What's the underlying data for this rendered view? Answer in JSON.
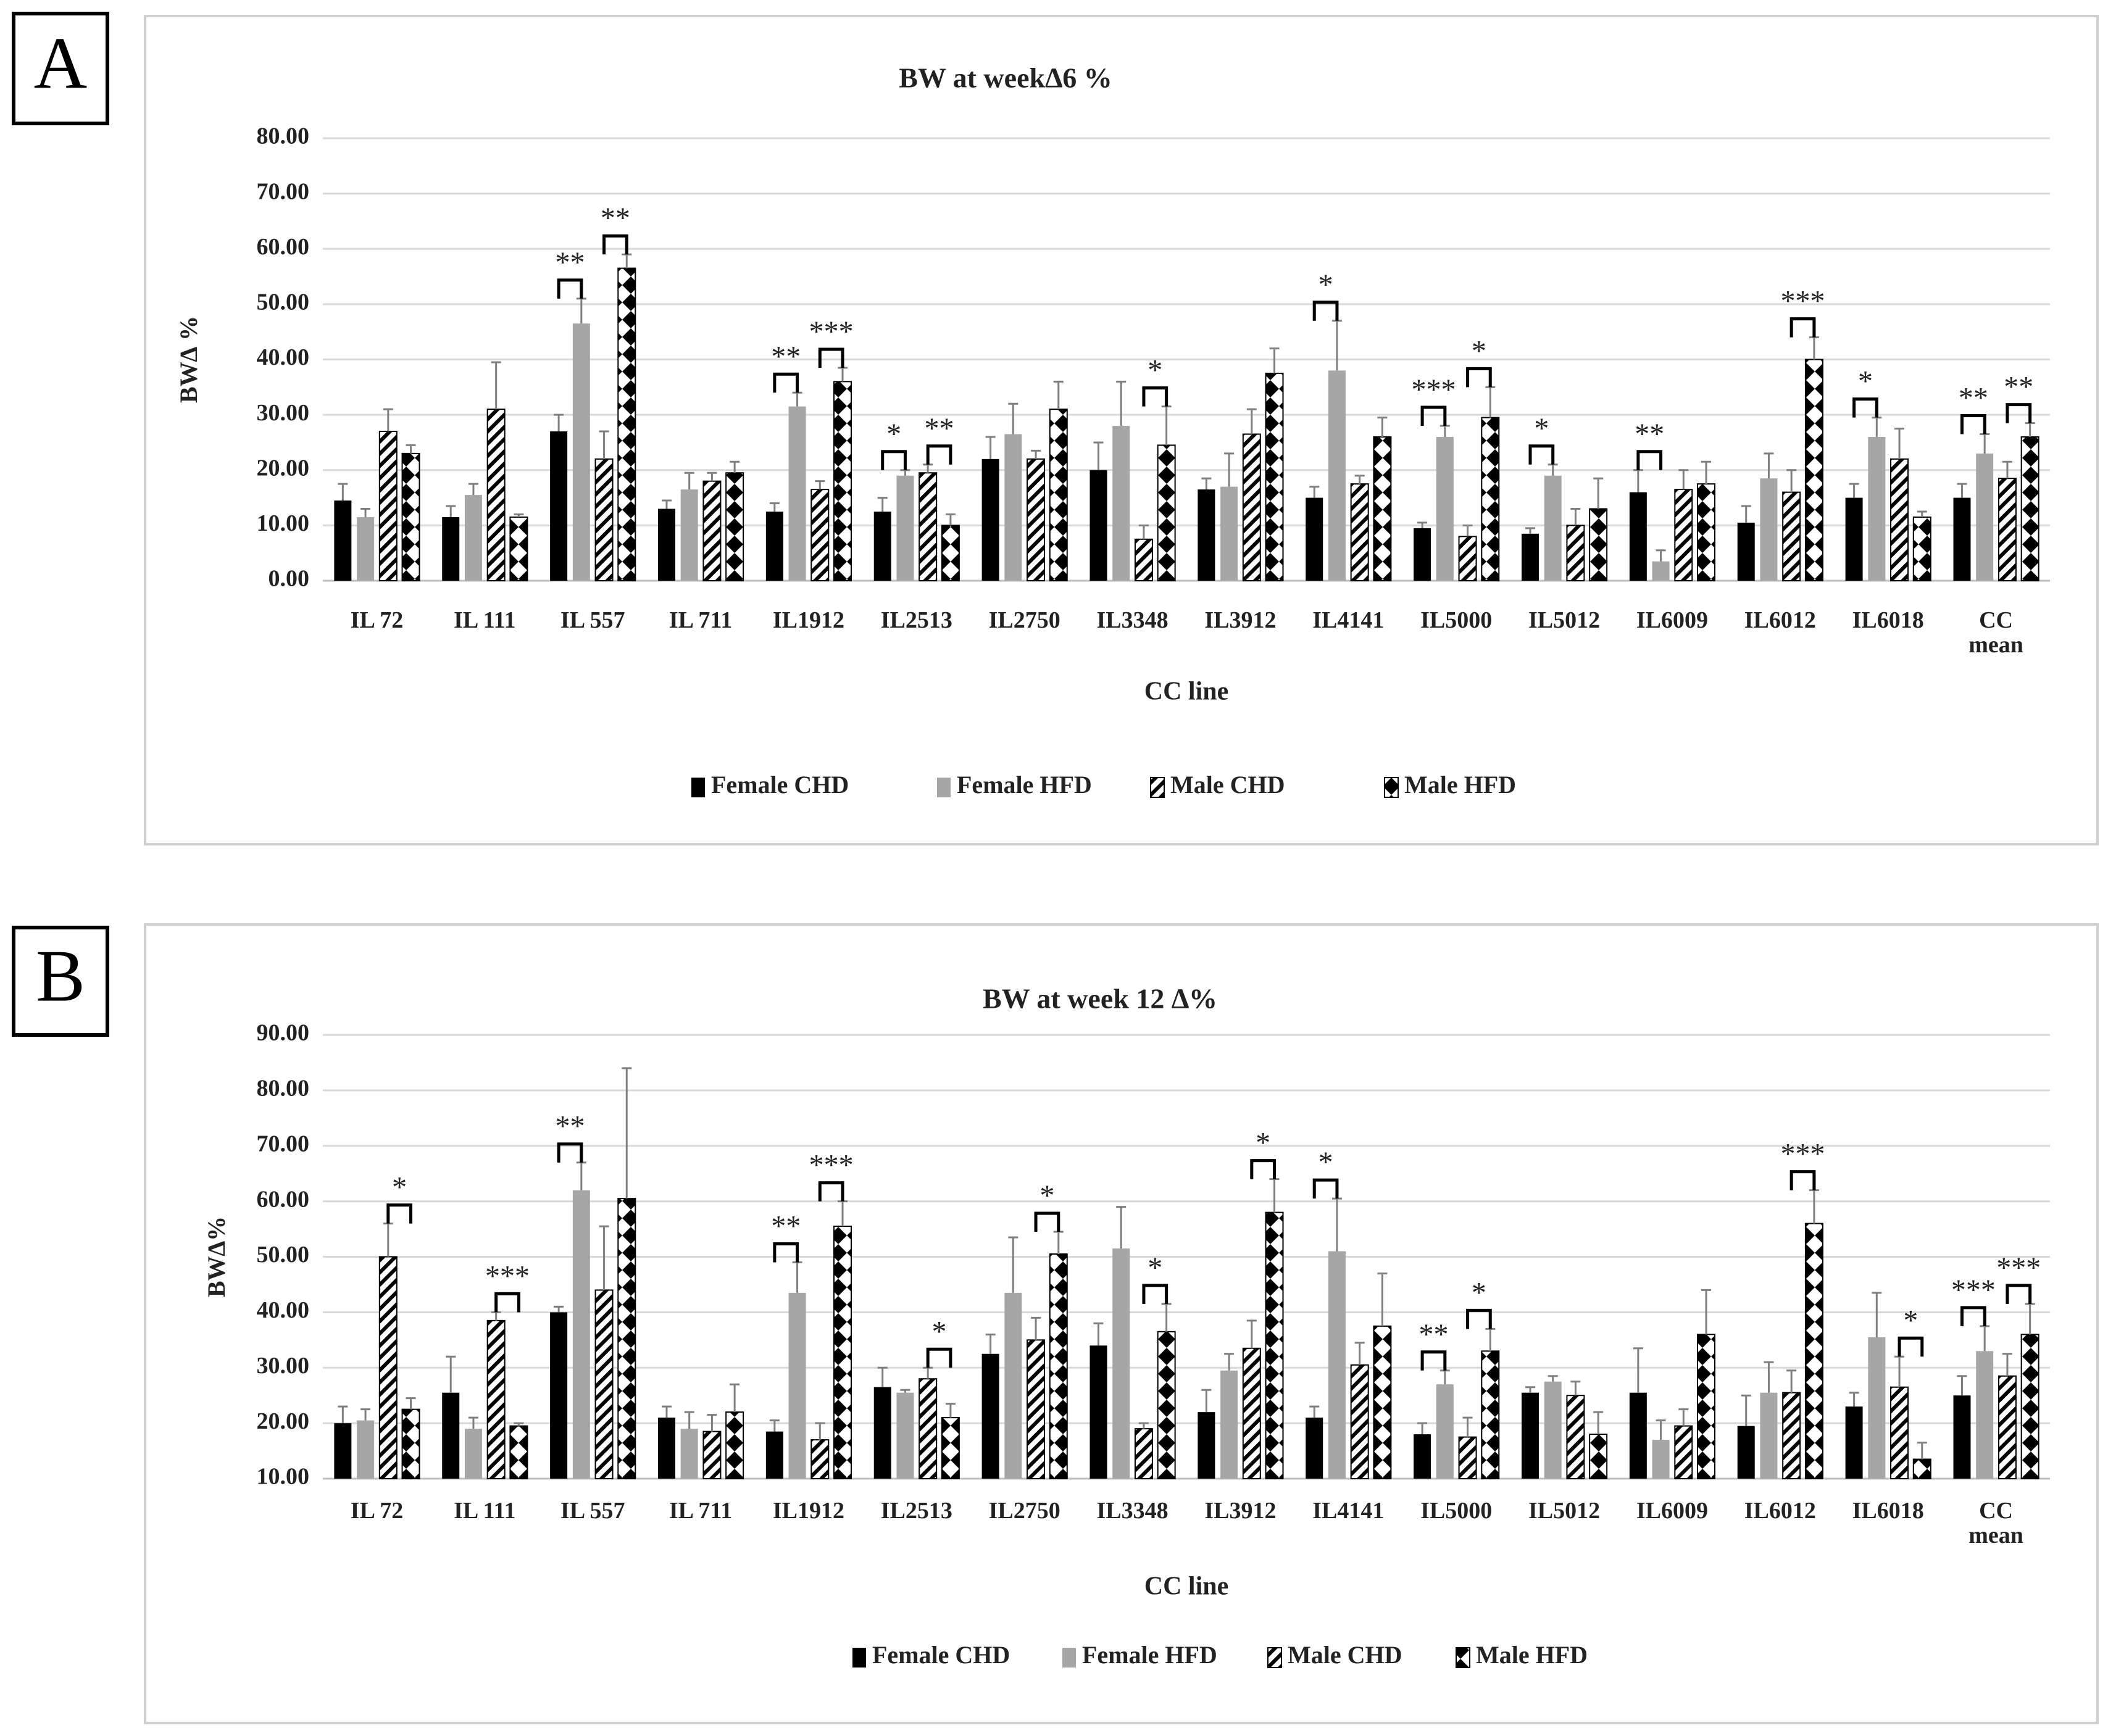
{
  "chart_data": [
    {
      "type": "bar",
      "panel": "A",
      "title": "BW at week∆6  %",
      "y_label": "BW∆ %",
      "x_label": "CC line",
      "categories": [
        "IL 72",
        "IL 111",
        "IL 557",
        "IL 711",
        "IL1912",
        "IL2513",
        "IL2750",
        "IL3348",
        "IL3912",
        "IL4141",
        "IL5000",
        "IL5012",
        "IL6009",
        "IL6012",
        "IL6018",
        "CC\nmean"
      ],
      "series": [
        {
          "name": "Female CHD",
          "color": "#000000",
          "pattern": "solid",
          "values": [
            14.5,
            11.5,
            27,
            13,
            12.5,
            12.5,
            22,
            20,
            16.5,
            15,
            9.5,
            8.5,
            16,
            10.5,
            15,
            15
          ],
          "errors": [
            3,
            2,
            3,
            1.5,
            1.5,
            2.5,
            4,
            5,
            2,
            2,
            1,
            1,
            4,
            3,
            2.5,
            2.5
          ]
        },
        {
          "name": "Female HFD",
          "color": "#a6a6a6",
          "pattern": "solid",
          "values": [
            11.5,
            15.5,
            46.5,
            16.5,
            31.5,
            19,
            26.5,
            28,
            17,
            38,
            26,
            19,
            3.5,
            18.5,
            26,
            23
          ],
          "errors": [
            1.5,
            2,
            4.5,
            3,
            2.5,
            1,
            5.5,
            8,
            6,
            9,
            2,
            2,
            2,
            4.5,
            3.5,
            3.5
          ]
        },
        {
          "name": "Male CHD",
          "color": "#000000",
          "pattern": "hatch",
          "values": [
            27,
            31,
            22,
            18,
            16.5,
            19.5,
            22,
            7.5,
            26.5,
            17.5,
            8,
            10,
            16.5,
            16,
            22,
            18.5
          ],
          "errors": [
            4,
            8.5,
            5,
            1.5,
            1.5,
            1.5,
            1.5,
            2.5,
            4.5,
            1.5,
            2,
            3,
            3.5,
            4,
            5.5,
            3
          ]
        },
        {
          "name": "Male HFD",
          "color": "#000000",
          "pattern": "diamond",
          "values": [
            23,
            11.5,
            56.5,
            19.5,
            36,
            10,
            31,
            24.5,
            37.5,
            26,
            29.5,
            13,
            17.5,
            40,
            11.5,
            26
          ],
          "errors": [
            1.5,
            0.5,
            2.5,
            2,
            2.5,
            2,
            5,
            7,
            4.5,
            3.5,
            5.5,
            5.5,
            4,
            4,
            1,
            2.5
          ]
        }
      ],
      "ylim": [
        0,
        80
      ],
      "yticks": [
        {
          "value": 0,
          "label": "0.00"
        },
        {
          "value": 10,
          "label": "10.00"
        },
        {
          "value": 20,
          "label": "20.00"
        },
        {
          "value": 30,
          "label": "30.00"
        },
        {
          "value": 40,
          "label": "40.00"
        },
        {
          "value": 50,
          "label": "50.00"
        },
        {
          "value": 60,
          "label": "60.00"
        },
        {
          "value": 70,
          "label": "70.00"
        },
        {
          "value": 80,
          "label": "80.00"
        }
      ],
      "grid": true,
      "legend": "bottom",
      "annotations": [
        {
          "category": "IL 557",
          "between": [
            "Female CHD",
            "Female HFD"
          ],
          "text": "**"
        },
        {
          "category": "IL 557",
          "between": [
            "Male CHD",
            "Male HFD"
          ],
          "text": "**"
        },
        {
          "category": "IL1912",
          "between": [
            "Female CHD",
            "Female HFD"
          ],
          "text": "**"
        },
        {
          "category": "IL1912",
          "between": [
            "Male CHD",
            "Male HFD"
          ],
          "text": "***"
        },
        {
          "category": "IL2513",
          "between": [
            "Female CHD",
            "Female HFD"
          ],
          "text": "*"
        },
        {
          "category": "IL2513",
          "between": [
            "Male CHD",
            "Male HFD"
          ],
          "text": "**"
        },
        {
          "category": "IL3348",
          "between": [
            "Male CHD",
            "Male HFD"
          ],
          "text": "*"
        },
        {
          "category": "IL4141",
          "between": [
            "Female CHD",
            "Female HFD"
          ],
          "text": "*"
        },
        {
          "category": "IL5000",
          "between": [
            "Female CHD",
            "Female HFD"
          ],
          "text": "***"
        },
        {
          "category": "IL5000",
          "between": [
            "Male CHD",
            "Male HFD"
          ],
          "text": "*"
        },
        {
          "category": "IL5012",
          "between": [
            "Female CHD",
            "Female HFD"
          ],
          "text": "*"
        },
        {
          "category": "IL6009",
          "between": [
            "Female CHD",
            "Female HFD"
          ],
          "text": "**"
        },
        {
          "category": "IL6012",
          "between": [
            "Male CHD",
            "Male HFD"
          ],
          "text": "***"
        },
        {
          "category": "IL6018",
          "between": [
            "Female CHD",
            "Female HFD"
          ],
          "text": "*"
        },
        {
          "category": "CC\nmean",
          "between": [
            "Female CHD",
            "Female HFD"
          ],
          "text": "**"
        },
        {
          "category": "CC\nmean",
          "between": [
            "Male CHD",
            "Male HFD"
          ],
          "text": "**"
        }
      ]
    },
    {
      "type": "bar",
      "panel": "B",
      "title": "BW at week 12 ∆%",
      "y_label": "BW∆%",
      "x_label": "CC line",
      "categories": [
        "IL 72",
        "IL 111",
        "IL 557",
        "IL 711",
        "IL1912",
        "IL2513",
        "IL2750",
        "IL3348",
        "IL3912",
        "IL4141",
        "IL5000",
        "IL5012",
        "IL6009",
        "IL6012",
        "IL6018",
        "CC\nmean"
      ],
      "series": [
        {
          "name": "Female CHD",
          "color": "#000000",
          "pattern": "solid",
          "values": [
            20,
            25.5,
            40,
            21,
            18.5,
            26.5,
            32.5,
            34,
            22,
            21,
            18,
            25.5,
            25.5,
            19.5,
            23,
            25
          ],
          "errors": [
            3,
            6.5,
            1,
            2,
            2,
            3.5,
            3.5,
            4,
            4,
            2,
            2,
            1,
            8,
            5.5,
            2.5,
            3.5
          ]
        },
        {
          "name": "Female HFD",
          "color": "#a6a6a6",
          "pattern": "solid",
          "values": [
            20.5,
            19,
            62,
            19,
            43.5,
            25.5,
            43.5,
            51.5,
            29.5,
            51,
            27,
            27.5,
            17,
            25.5,
            35.5,
            33
          ],
          "errors": [
            2,
            2,
            5,
            3,
            5.5,
            0.5,
            10,
            7.5,
            3,
            9.5,
            2.5,
            1,
            3.5,
            5.5,
            8,
            4.5
          ]
        },
        {
          "name": "Male CHD",
          "color": "#000000",
          "pattern": "hatch",
          "values": [
            50,
            38.5,
            44,
            18.5,
            17,
            28,
            35,
            19,
            33.5,
            30.5,
            17.5,
            25,
            19.5,
            25.5,
            26.5,
            28.5
          ],
          "errors": [
            6,
            1.5,
            11.5,
            3,
            3,
            2,
            4,
            1,
            5,
            4,
            3.5,
            2.5,
            3,
            4,
            5.5,
            4
          ]
        },
        {
          "name": "Male HFD",
          "color": "#000000",
          "pattern": "diamond",
          "values": [
            22.5,
            19.5,
            60.5,
            22,
            55.5,
            21,
            50.5,
            36.5,
            58,
            37.5,
            33,
            18,
            36,
            56,
            13.5,
            36
          ],
          "errors": [
            2,
            0.5,
            23.5,
            5,
            4.5,
            2.5,
            4,
            5,
            6,
            9.5,
            4,
            4,
            8,
            6,
            3,
            5.5
          ]
        }
      ],
      "ylim": [
        10,
        90
      ],
      "yticks": [
        {
          "value": 10,
          "label": "10.00"
        },
        {
          "value": 20,
          "label": "20.00"
        },
        {
          "value": 30,
          "label": "30.00"
        },
        {
          "value": 40,
          "label": "40.00"
        },
        {
          "value": 50,
          "label": "50.00"
        },
        {
          "value": 60,
          "label": "60.00"
        },
        {
          "value": 70,
          "label": "70.00"
        },
        {
          "value": 80,
          "label": "80.00"
        },
        {
          "value": 90,
          "label": "90.00"
        }
      ],
      "grid": true,
      "legend": "bottom",
      "annotations": [
        {
          "category": "IL 72",
          "between": [
            "Male CHD",
            "Male HFD"
          ],
          "text": "*"
        },
        {
          "category": "IL 111",
          "between": [
            "Male CHD",
            "Male HFD"
          ],
          "text": "***"
        },
        {
          "category": "IL 557",
          "between": [
            "Female CHD",
            "Female HFD"
          ],
          "text": "**"
        },
        {
          "category": "IL1912",
          "between": [
            "Female CHD",
            "Female HFD"
          ],
          "text": "**"
        },
        {
          "category": "IL1912",
          "between": [
            "Male CHD",
            "Male HFD"
          ],
          "text": "***"
        },
        {
          "category": "IL2513",
          "between": [
            "Male CHD",
            "Male HFD"
          ],
          "text": "*"
        },
        {
          "category": "IL2750",
          "between": [
            "Male CHD",
            "Male HFD"
          ],
          "text": "*"
        },
        {
          "category": "IL3348",
          "between": [
            "Male CHD",
            "Male HFD"
          ],
          "text": "*"
        },
        {
          "category": "IL3912",
          "between": [
            "Male CHD",
            "Male HFD"
          ],
          "text": "*"
        },
        {
          "category": "IL4141",
          "between": [
            "Female CHD",
            "Female HFD"
          ],
          "text": "*"
        },
        {
          "category": "IL5000",
          "between": [
            "Female CHD",
            "Female HFD"
          ],
          "text": "**"
        },
        {
          "category": "IL5000",
          "between": [
            "Male CHD",
            "Male HFD"
          ],
          "text": "*"
        },
        {
          "category": "IL6012",
          "between": [
            "Male CHD",
            "Male HFD"
          ],
          "text": "***"
        },
        {
          "category": "IL6018",
          "between": [
            "Male CHD",
            "Male HFD"
          ],
          "text": "*"
        },
        {
          "category": "CC\nmean",
          "between": [
            "Female CHD",
            "Female HFD"
          ],
          "text": "***"
        },
        {
          "category": "CC\nmean",
          "between": [
            "Male CHD",
            "Male HFD"
          ],
          "text": "***"
        }
      ]
    }
  ]
}
